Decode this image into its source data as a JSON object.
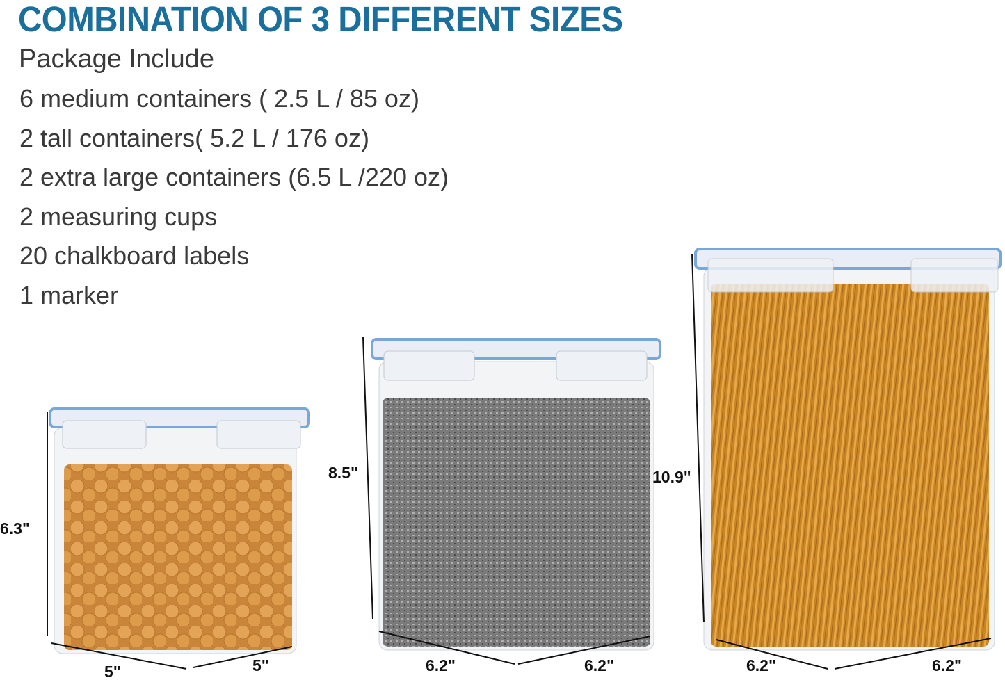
{
  "title": "COMBINATION OF 3 DIFFERENT SIZES",
  "subtitle": "Package Include",
  "items": [
    "6 medium containers ( 2.5 L / 85 oz)",
    "2 tall containers( 5.2 L / 176 oz)",
    "2 extra large containers (6.5 L /220 oz)",
    "2 measuring cups",
    "20 chalkboard labels",
    "1 marker"
  ],
  "containers": [
    {
      "contents": "crackers",
      "height": "6.3\"",
      "width": "5\"",
      "depth": "5\""
    },
    {
      "contents": "oats",
      "height": "8.5\"",
      "width": "6.2\"",
      "depth": "6.2\""
    },
    {
      "contents": "spaghetti",
      "height": "10.9\"",
      "width": "6.2\"",
      "depth": "6.2\""
    }
  ],
  "colors": {
    "accent": "#1b6f9c",
    "lid": "#7aa6d8",
    "crackers": "#d99a4a",
    "oats": "#8a8a8a",
    "spaghetti": "#d9962f"
  }
}
